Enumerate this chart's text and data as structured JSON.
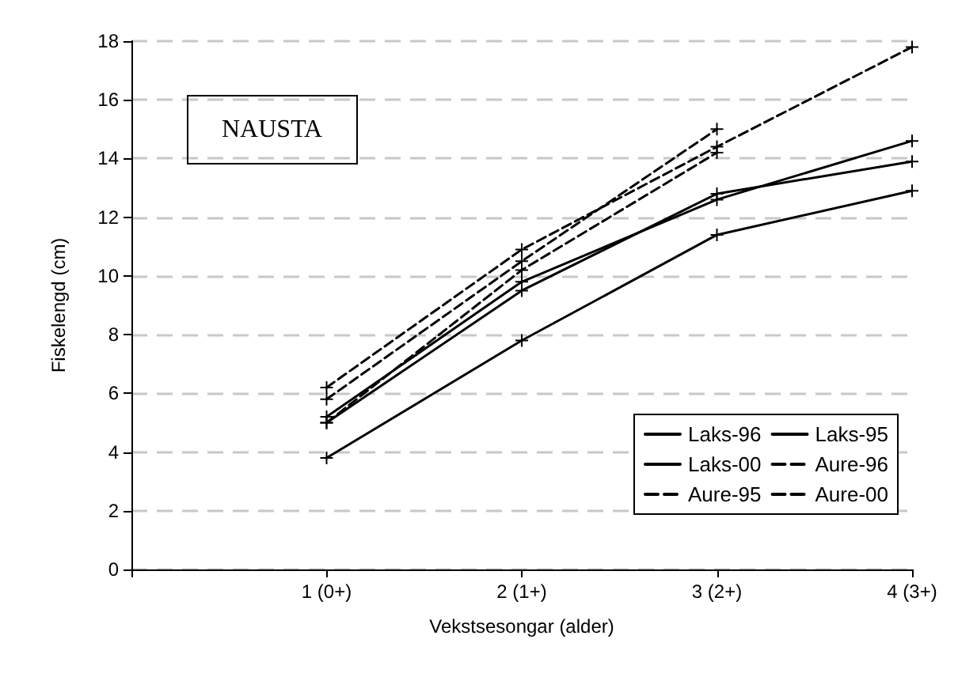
{
  "chart_data": {
    "type": "line",
    "title": "NAUSTA",
    "xlabel": "Vekstsesongar (alder)",
    "ylabel": "Fiskelengd (cm)",
    "categories": [
      "1 (0+)",
      "2 (1+)",
      "3 (2+)",
      "4 (3+)"
    ],
    "series": [
      {
        "name": "Laks-96",
        "color": "#000000",
        "line_style": "solid",
        "values": [
          5.0,
          9.5,
          12.8,
          13.9
        ]
      },
      {
        "name": "Laks-95",
        "color": "#000000",
        "line_style": "solid",
        "values": [
          5.2,
          9.8,
          12.6,
          14.6
        ]
      },
      {
        "name": "Laks-00",
        "color": "#000000",
        "line_style": "solid",
        "values": [
          3.8,
          7.8,
          11.4,
          12.9
        ]
      },
      {
        "name": "Aure-96",
        "color": "#000000",
        "line_style": "dashed",
        "values": [
          6.2,
          10.9,
          14.4,
          17.8
        ]
      },
      {
        "name": "Aure-95",
        "color": "#000000",
        "line_style": "dashed",
        "values": [
          5.8,
          10.5,
          15.0,
          null
        ]
      },
      {
        "name": "Aure-00",
        "color": "#000000",
        "line_style": "dashed",
        "values": [
          5.0,
          10.2,
          14.2,
          null
        ]
      }
    ],
    "ylim": [
      0,
      18
    ],
    "yticks": [
      0,
      2,
      4,
      6,
      8,
      10,
      12,
      14,
      16,
      18
    ],
    "grid": "y",
    "legend": "bottom right",
    "marker": "cross"
  }
}
